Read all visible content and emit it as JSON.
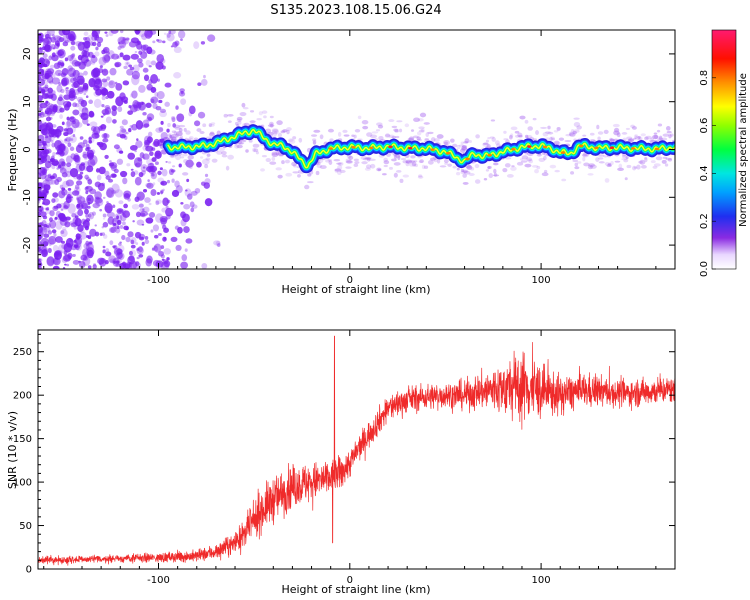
{
  "title": "S135.2023.108.15.06.G24",
  "colors": {
    "snr_line": "#ef2a2a",
    "scatter_purple": "#7a1ff0",
    "colormap": [
      "#ffffff",
      "#7a1fe8",
      "#1f2ff0",
      "#00e0ff",
      "#00ff40",
      "#ffff00",
      "#ff7000",
      "#ff0000",
      "#ff1a70"
    ]
  },
  "chart_data": [
    {
      "type": "heatmap",
      "xlabel": "Height of straight line (km)",
      "ylabel": "Frequency (Hz)",
      "xlim": [
        -163,
        170
      ],
      "ylim": [
        -25,
        25
      ],
      "xticks": [
        -100,
        0,
        100
      ],
      "yticks": [
        -20,
        -10,
        0,
        10,
        20
      ],
      "grid": false,
      "colorbar": {
        "label": "Normalized spectral amplitude",
        "range": [
          0,
          1
        ],
        "ticks": [
          "0.0",
          "0.2",
          "0.4",
          "0.6",
          "0.8"
        ]
      },
      "noise_region_km": [
        -163,
        -68
      ],
      "signal_region_km": [
        -95,
        170
      ],
      "ridge": {
        "x": [
          -95,
          -85,
          -75,
          -65,
          -55,
          -50,
          -45,
          -40,
          -35,
          -30,
          -25,
          -22,
          -18,
          -10,
          0,
          10,
          20,
          30,
          40,
          50,
          55,
          60,
          65,
          70,
          80,
          90,
          100,
          110,
          115,
          120,
          130,
          140,
          150,
          160,
          170
        ],
        "y": [
          0.5,
          0.5,
          0.8,
          2.0,
          3.5,
          4.0,
          2.5,
          1.0,
          0.8,
          -0.5,
          -2.5,
          -3.5,
          -1.0,
          0.2,
          0.5,
          0.3,
          0.6,
          0.3,
          0.2,
          -0.5,
          -1.5,
          -2.5,
          -0.8,
          -1.5,
          -0.5,
          0.5,
          0.8,
          -0.5,
          -1.0,
          0.8,
          0.3,
          0.4,
          0.2,
          0.1,
          0.5
        ]
      }
    },
    {
      "type": "line",
      "xlabel": "Height of straight line (km)",
      "ylabel": "SNR (10 * v/v)",
      "xlim": [
        -163,
        170
      ],
      "ylim": [
        0,
        275
      ],
      "xticks": [
        -100,
        0,
        100
      ],
      "yticks": [
        0,
        50,
        100,
        150,
        200,
        250
      ],
      "grid": false,
      "series": [
        {
          "x": [
            -163,
            -140,
            -120,
            -100,
            -80,
            -70,
            -62,
            -55,
            -50,
            -45,
            -40,
            -30,
            -20,
            -10,
            -5,
            0,
            5,
            10,
            15,
            20,
            25,
            30,
            40,
            50,
            60,
            70,
            80,
            90,
            100,
            110,
            120,
            130,
            140,
            150,
            160,
            170
          ],
          "y": [
            10,
            11,
            12,
            13,
            15,
            20,
            28,
            40,
            55,
            70,
            80,
            95,
            100,
            105,
            110,
            122,
            140,
            155,
            170,
            185,
            190,
            195,
            198,
            200,
            200,
            205,
            208,
            210,
            205,
            200,
            205,
            205,
            202,
            203,
            205,
            207
          ],
          "amp": [
            4,
            4,
            4,
            5,
            6,
            8,
            10,
            14,
            18,
            22,
            24,
            22,
            20,
            18,
            18,
            15,
            14,
            14,
            14,
            14,
            14,
            13,
            13,
            14,
            15,
            20,
            28,
            38,
            28,
            20,
            18,
            16,
            14,
            14,
            14,
            14
          ]
        }
      ],
      "spikes": [
        {
          "x": -8,
          "y": 268
        },
        {
          "x": -52,
          "y": 68
        },
        {
          "x": -9,
          "y": 30
        }
      ]
    }
  ]
}
